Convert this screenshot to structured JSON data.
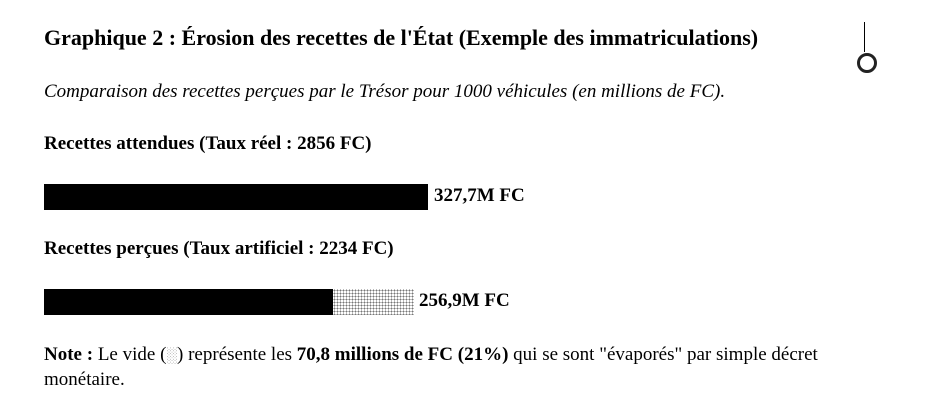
{
  "title": "Graphique 2 : Érosion des recettes de l'État (Exemple des immatriculations)",
  "subtitle": "Comparaison des recettes perçues par le Trésor pour 1000 véhicules (en millions de FC).",
  "bars": [
    {
      "heading": "Recettes attendues (Taux réel : 2856 FC)",
      "value_label": "327,7M FC",
      "value": 327.7
    },
    {
      "heading": "Recettes perçues (Taux artificiel : 2234 FC)",
      "value_label": "256,9M FC",
      "value": 256.9,
      "gap": 70.8
    }
  ],
  "note": {
    "label": "Note :",
    "text1": " Le vide (",
    "symbol": "░",
    "text2": ") représente les ",
    "bold": "70,8 millions de FC (21%)",
    "text3": " qui se sont \"évaporés\" par simple décret monétaire."
  },
  "colors": {
    "bar": "#000000",
    "gap_pattern": "#777777"
  }
}
